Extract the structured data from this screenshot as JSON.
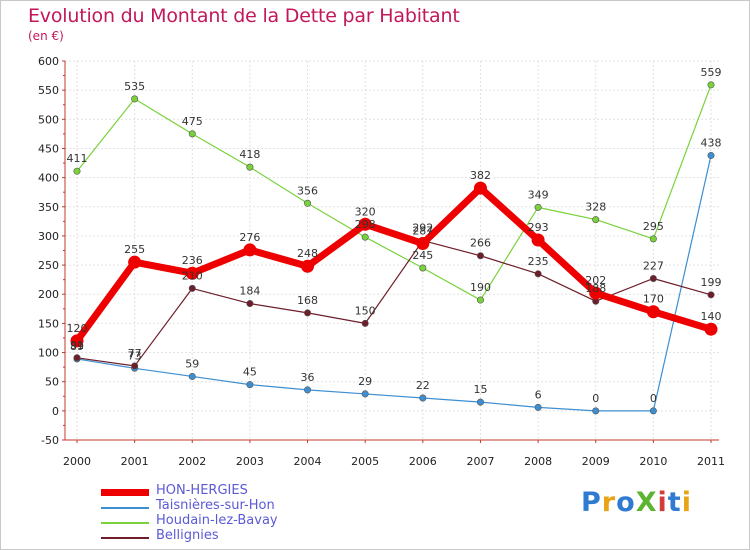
{
  "title": "Evolution du Montant de la Dette par Habitant",
  "subtitle": "(en €)",
  "logo": {
    "text": "ProXiti",
    "colors": [
      "#2e7bd1",
      "#e8a417",
      "#2e7bd1",
      "#5bb531",
      "#d23c3c",
      "#2e7bd1",
      "#e8a417"
    ]
  },
  "chart_data": {
    "type": "line",
    "title": "Evolution du Montant de la Dette par Habitant",
    "ylabel": "(en €)",
    "xlabel": "",
    "x": [
      "2000",
      "2001",
      "2002",
      "2003",
      "2004",
      "2005",
      "2006",
      "2007",
      "2008",
      "2009",
      "2010",
      "2011"
    ],
    "ylim": [
      -50,
      600
    ],
    "yticks": [
      -50,
      0,
      50,
      100,
      150,
      200,
      250,
      300,
      350,
      400,
      450,
      500,
      550,
      600
    ],
    "grid": true,
    "legend": "bottom-left",
    "series": [
      {
        "name": "HON-HERGIES",
        "color": "#ee0000",
        "values": [
          120,
          255,
          236,
          276,
          248,
          320,
          287,
          382,
          293,
          202,
          170,
          140
        ]
      },
      {
        "name": "Taisnières-sur-Hon",
        "color": "#3d8fd1",
        "values": [
          89,
          73,
          59,
          45,
          36,
          29,
          22,
          15,
          6,
          0,
          0,
          438
        ]
      },
      {
        "name": "Houdain-lez-Bavay",
        "color": "#79d23a",
        "values": [
          411,
          535,
          475,
          418,
          356,
          298,
          245,
          190,
          349,
          328,
          295,
          559
        ]
      },
      {
        "name": "Bellignies",
        "color": "#6e1e2a",
        "values": [
          91,
          77,
          210,
          184,
          168,
          150,
          292,
          266,
          235,
          188,
          227,
          199
        ]
      }
    ]
  }
}
